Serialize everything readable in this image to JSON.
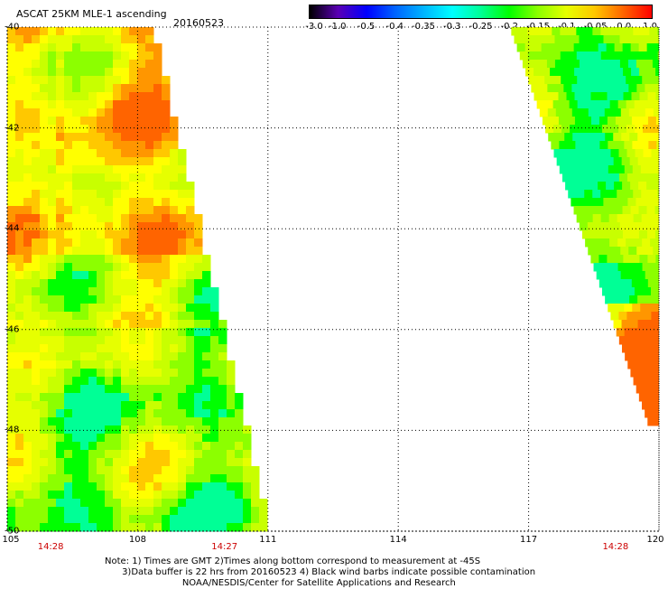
{
  "header": {
    "title": "ASCAT 25KM MLE-1 ascending",
    "date": "20160523"
  },
  "colorbar": {
    "labels": [
      "-3.0",
      "-1.0",
      "-0.5",
      "-0.4",
      "-0.35",
      "-0.3",
      "-0.25",
      "-0.2",
      "-0.15",
      "-0.1",
      "-0.05",
      "0.0",
      "1.0"
    ],
    "colors": [
      "#000000",
      "#5a00b4",
      "#0000ff",
      "#0064ff",
      "#00b4ff",
      "#00ffff",
      "#00ff96",
      "#00ff00",
      "#8cff00",
      "#e6ff00",
      "#ffc800",
      "#ff6400",
      "#ff0000"
    ]
  },
  "map": {
    "lat_labels": [
      "-40",
      "-42",
      "-44",
      "-46",
      "-48",
      "-50"
    ],
    "lon_labels": [
      "105",
      "108",
      "111",
      "114",
      "117",
      "120"
    ],
    "time_labels": [
      "14:28",
      "14:27",
      "14:28"
    ],
    "lat_range": [
      -50,
      -40
    ],
    "lon_range": [
      105,
      120
    ],
    "grid": true,
    "swaths": [
      {
        "name": "west",
        "lat_top": -40,
        "lat_bottom": -50,
        "east_edge_lon_top": 108.3,
        "east_edge_lon_bottom": 111.0
      },
      {
        "name": "east",
        "lat_top": -40,
        "lat_bottom": -47.9,
        "west_edge_lon_top": 116.6,
        "west_edge_lon_bottom": 119.8
      }
    ]
  },
  "notes": [
    "Note: 1) Times are GMT 2)Times along bottom correspond to measurement at -45S",
    "      3)Data buffer is 22 hrs from 20160523 4) Black wind barbs indicate possible contamination",
    "                           NOAA/NESDIS/Center for Satellite Applications and Research"
  ]
}
